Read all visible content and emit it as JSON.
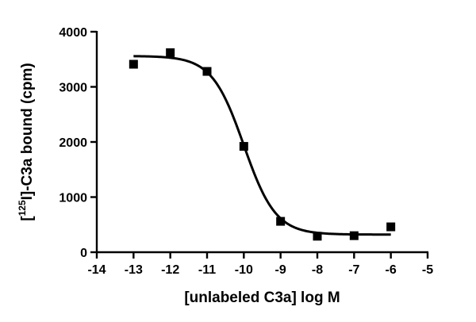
{
  "chart_data": {
    "type": "scatter",
    "xlabel": "[unlabeled C3a] log M",
    "ylabel_parts": {
      "open": "[",
      "superscript": "125",
      "rest": "I]-C3a bound (cpm)"
    },
    "xlim": [
      -14,
      -5
    ],
    "ylim": [
      0,
      4000
    ],
    "x_ticks": [
      -14,
      -13,
      -12,
      -11,
      -10,
      -9,
      -8,
      -7,
      -6,
      -5
    ],
    "y_ticks": [
      0,
      1000,
      2000,
      3000,
      4000
    ],
    "grid": false,
    "legend": "none",
    "series": [
      {
        "marker": "square",
        "x": [
          -13,
          -12,
          -11,
          -10,
          -9,
          -8,
          -7,
          -6
        ],
        "y": [
          3410,
          3620,
          3280,
          1920,
          560,
          290,
          300,
          460
        ]
      }
    ],
    "fit": {
      "model": "sigmoidal dose-response",
      "top": 3560,
      "bottom": 320,
      "log_ec50": -10.0,
      "hill_slope": -1.0,
      "x_range": [
        -13,
        -6
      ]
    }
  }
}
